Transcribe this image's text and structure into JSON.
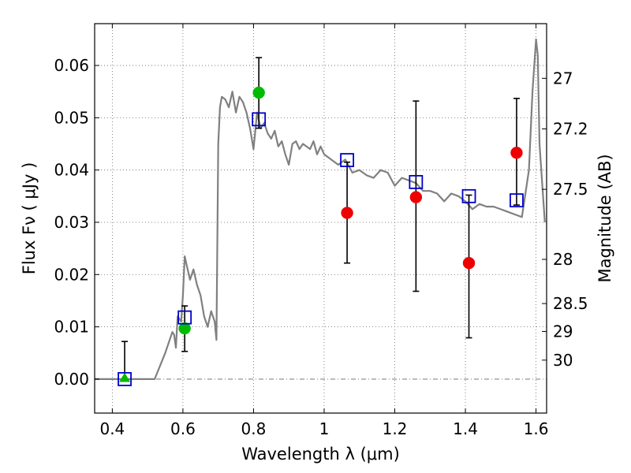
{
  "chart_data": {
    "type": "scatter",
    "title": "",
    "xlabel": "Wavelength  λ (μm)",
    "ylabel": "Flux  Fν  ( μJy )",
    "y2label": "Magnitude (AB)",
    "xlim": [
      0.35,
      1.63
    ],
    "ylim": [
      -0.0065,
      0.068
    ],
    "grid": true,
    "x_ticks": [
      {
        "value": 0.4,
        "label": "0.4"
      },
      {
        "value": 0.6,
        "label": "0.6"
      },
      {
        "value": 0.8,
        "label": "0.8"
      },
      {
        "value": 1.0,
        "label": "1"
      },
      {
        "value": 1.2,
        "label": "1.2"
      },
      {
        "value": 1.4,
        "label": "1.4"
      },
      {
        "value": 1.6,
        "label": "1.6"
      }
    ],
    "y_ticks": [
      {
        "value": 0.0,
        "label": "0.00"
      },
      {
        "value": 0.01,
        "label": "0.01"
      },
      {
        "value": 0.02,
        "label": "0.02"
      },
      {
        "value": 0.03,
        "label": "0.03"
      },
      {
        "value": 0.04,
        "label": "0.04"
      },
      {
        "value": 0.05,
        "label": "0.05"
      },
      {
        "value": 0.06,
        "label": "0.06"
      }
    ],
    "mag_ticks": [
      {
        "mag": 27,
        "label": "27"
      },
      {
        "mag": 27.2,
        "label": "27.2"
      },
      {
        "mag": 27.5,
        "label": "27.5"
      },
      {
        "mag": 28,
        "label": "28"
      },
      {
        "mag": 28.5,
        "label": "28.5"
      },
      {
        "mag": 29,
        "label": "29"
      },
      {
        "mag": 30,
        "label": "30"
      }
    ],
    "colors": {
      "model": "#808080",
      "green": "#00bb00",
      "red": "#ee0000",
      "box": "#0000cc",
      "errorbar": "#000000",
      "grid": "#666666",
      "zero_line": "#666666"
    },
    "series": [
      {
        "name": "model SED",
        "kind": "line",
        "x": [
          0.35,
          0.52,
          0.55,
          0.57,
          0.575,
          0.58,
          0.585,
          0.59,
          0.595,
          0.6,
          0.605,
          0.61,
          0.62,
          0.63,
          0.64,
          0.65,
          0.66,
          0.67,
          0.68,
          0.69,
          0.695,
          0.7,
          0.705,
          0.71,
          0.72,
          0.73,
          0.74,
          0.75,
          0.76,
          0.77,
          0.78,
          0.79,
          0.8,
          0.805,
          0.81,
          0.82,
          0.83,
          0.84,
          0.85,
          0.86,
          0.87,
          0.88,
          0.89,
          0.9,
          0.91,
          0.92,
          0.93,
          0.94,
          0.95,
          0.96,
          0.97,
          0.98,
          0.99,
          1.0,
          1.02,
          1.04,
          1.06,
          1.08,
          1.1,
          1.12,
          1.14,
          1.16,
          1.18,
          1.2,
          1.22,
          1.24,
          1.26,
          1.28,
          1.3,
          1.32,
          1.34,
          1.36,
          1.38,
          1.4,
          1.42,
          1.44,
          1.46,
          1.48,
          1.5,
          1.52,
          1.54,
          1.56,
          1.58,
          1.59,
          1.6,
          1.605,
          1.61,
          1.62,
          1.625
        ],
        "y": [
          0.0,
          0.0,
          0.005,
          0.009,
          0.0085,
          0.006,
          0.012,
          0.0115,
          0.011,
          0.016,
          0.0235,
          0.022,
          0.019,
          0.021,
          0.018,
          0.016,
          0.012,
          0.01,
          0.013,
          0.011,
          0.0075,
          0.045,
          0.052,
          0.054,
          0.0535,
          0.052,
          0.055,
          0.051,
          0.054,
          0.053,
          0.051,
          0.048,
          0.044,
          0.0475,
          0.051,
          0.048,
          0.049,
          0.047,
          0.046,
          0.0475,
          0.0445,
          0.0455,
          0.043,
          0.041,
          0.045,
          0.0455,
          0.044,
          0.045,
          0.0445,
          0.044,
          0.0455,
          0.043,
          0.0445,
          0.043,
          0.042,
          0.041,
          0.042,
          0.0395,
          0.04,
          0.039,
          0.0385,
          0.04,
          0.0395,
          0.037,
          0.0385,
          0.038,
          0.0375,
          0.036,
          0.036,
          0.0355,
          0.034,
          0.0355,
          0.035,
          0.034,
          0.0325,
          0.0335,
          0.033,
          0.033,
          0.0325,
          0.032,
          0.0315,
          0.031,
          0.04,
          0.055,
          0.065,
          0.062,
          0.045,
          0.035,
          0.03
        ]
      },
      {
        "name": "green detections",
        "kind": "points",
        "marker": "circle",
        "x": [
          0.605,
          0.815
        ],
        "y": [
          0.0097,
          0.0548
        ]
      },
      {
        "name": "green upper point",
        "kind": "points",
        "marker": "triangle",
        "x": [
          0.435
        ],
        "y": [
          0.0002
        ]
      },
      {
        "name": "red detections",
        "kind": "points",
        "marker": "circle",
        "x": [
          1.065,
          1.26,
          1.41,
          1.545
        ],
        "y": [
          0.0318,
          0.0348,
          0.0222,
          0.0433
        ]
      },
      {
        "name": "model photometry",
        "kind": "points",
        "marker": "square",
        "x": [
          0.435,
          0.605,
          0.815,
          1.065,
          1.26,
          1.41,
          1.545
        ],
        "y": [
          0.0,
          0.0118,
          0.0497,
          0.0419,
          0.0377,
          0.035,
          0.0342
        ]
      }
    ],
    "error_bars": [
      {
        "x": 0.435,
        "low": 0.0,
        "high": 0.0072
      },
      {
        "x": 0.605,
        "low": 0.0053,
        "high": 0.014
      },
      {
        "x": 0.815,
        "low": 0.048,
        "high": 0.0615
      },
      {
        "x": 1.065,
        "low": 0.0222,
        "high": 0.0415
      },
      {
        "x": 1.26,
        "low": 0.0168,
        "high": 0.0532
      },
      {
        "x": 1.41,
        "low": 0.0079,
        "high": 0.0352
      },
      {
        "x": 1.545,
        "low": 0.0333,
        "high": 0.0537
      }
    ]
  }
}
